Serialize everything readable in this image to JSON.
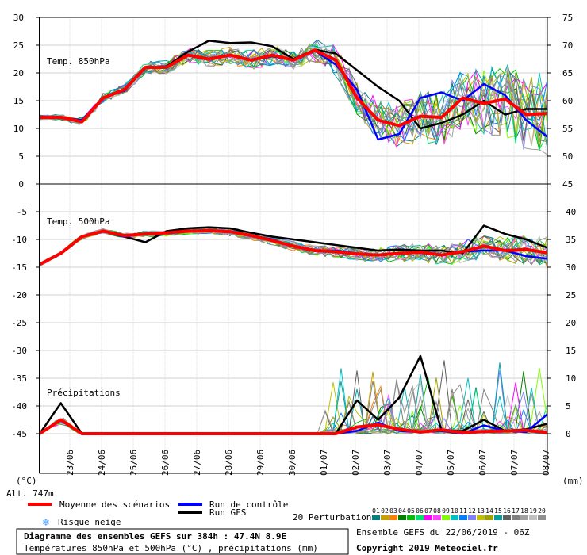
{
  "chart_data": {
    "type": "line",
    "title": "Diagramme des ensembles GEFS sur 384h : 47.4N 8.9E",
    "subtitle": "Températures 850hPa et 500hPa (°C) , précipitations (mm)",
    "run_info": "Ensemble GEFS du 22/06/2019 - 06Z",
    "copyright": "Copyright 2019 Meteociel.fr",
    "altitude": "Alt. 747m",
    "left_unit": "(°C)",
    "right_unit": "(mm)",
    "x_dates": [
      "23/06",
      "24/06",
      "25/06",
      "26/06",
      "27/06",
      "28/06",
      "29/06",
      "30/06",
      "01/07",
      "02/07",
      "03/07",
      "04/07",
      "05/07",
      "06/07",
      "07/07",
      "08/07"
    ],
    "xlim": [
      0,
      64
    ],
    "panel_labels": [
      "Temp. 850hPa",
      "Temp. 500hPa",
      "Précipitations"
    ],
    "left_axis_850": [
      "30",
      "25",
      "20",
      "15",
      "10",
      "5",
      "0"
    ],
    "left_axis_lower": [
      "-5",
      "-10",
      "-15",
      "-20",
      "-25",
      "-30",
      "-35",
      "-40",
      "-45"
    ],
    "right_axis_upper": [
      "75",
      "70",
      "65",
      "60",
      "55",
      "50",
      "45"
    ],
    "right_axis_lower": [
      "40",
      "35",
      "30",
      "25",
      "20",
      "15",
      "10",
      "5",
      "0"
    ],
    "legend": {
      "mean": "Moyenne des scénarios",
      "control": "Run de contrôle",
      "gfs": "Run GFS",
      "snow": "Risque neige",
      "perturbations": "20 Perturbations",
      "pert_numbers": [
        "01",
        "02",
        "03",
        "04",
        "05",
        "06",
        "07",
        "08",
        "09",
        "10",
        "11",
        "12",
        "13",
        "14",
        "15",
        "16",
        "17",
        "18",
        "19",
        "20"
      ]
    },
    "colors": {
      "mean": "#ff0000",
      "control": "#0000ff",
      "gfs": "#000000",
      "snow": "#3399ff",
      "perturbations": [
        "#008080",
        "#c8a000",
        "#ff8000",
        "#008000",
        "#00c000",
        "#00e070",
        "#ff00ff",
        "#ff40ff",
        "#80ff00",
        "#00c0c0",
        "#0080ff",
        "#8080ff",
        "#c0c000",
        "#a0a000",
        "#00a0a0",
        "#606060",
        "#808080",
        "#a0a0a0",
        "#c0c0c0",
        "#909090"
      ]
    },
    "series": [
      {
        "name": "Moyenne des scénarios",
        "t850": [
          12,
          12,
          11.2,
          15.5,
          17,
          21,
          21,
          23.2,
          22.5,
          23.2,
          22.3,
          23.2,
          22.3,
          24.1,
          22.3,
          15.5,
          11.5,
          10.5,
          12.2,
          12,
          15.5,
          14.5,
          15.3,
          12.5,
          12.7
        ],
        "t500": [
          -14.5,
          -12.5,
          -9.5,
          -8.5,
          -9.3,
          -9,
          -8.8,
          -8.5,
          -8.4,
          -8.6,
          -9.3,
          -10.2,
          -11.2,
          -12,
          -12.2,
          -12.6,
          -12.8,
          -12.5,
          -12.3,
          -12.8,
          -12.2,
          -11.2,
          -12,
          -11.8,
          -12.4
        ],
        "precip": [
          0,
          2.5,
          0,
          0,
          0,
          0,
          0,
          0,
          0,
          0,
          0,
          0,
          0,
          0,
          0,
          1.2,
          1.6,
          0.8,
          0.3,
          0.7,
          0.2,
          0.4,
          0.5,
          0.6,
          0.2
        ]
      },
      {
        "name": "Run de contrôle",
        "t850": [
          12,
          12,
          11.5,
          15.5,
          16.8,
          21,
          21,
          23.3,
          22.5,
          23.3,
          22.3,
          23,
          22.3,
          24,
          21.5,
          17,
          8,
          9,
          15.5,
          16.5,
          15,
          18,
          16,
          11.5,
          8.5
        ],
        "t500": [
          -14.5,
          -12.5,
          -9.5,
          -8.5,
          -9.5,
          -9,
          -8.8,
          -8.5,
          -8.4,
          -8.5,
          -9.3,
          -10,
          -11.3,
          -12,
          -12,
          -12.5,
          -12.8,
          -12.5,
          -12.3,
          -12.8,
          -12.2,
          -12,
          -12,
          -13,
          -13.5
        ],
        "precip": [
          0,
          2.5,
          0,
          0,
          0,
          0,
          0,
          0,
          0,
          0,
          0,
          0,
          0,
          0,
          0,
          0.5,
          2,
          0.5,
          0.3,
          0.5,
          0,
          1.5,
          0.5,
          0.3,
          3.5
        ]
      },
      {
        "name": "Run GFS",
        "t850": [
          12,
          12,
          11.3,
          15.5,
          17,
          21,
          21.2,
          23.8,
          25.8,
          25.4,
          25.5,
          24.8,
          22.5,
          24.2,
          23.5,
          20.5,
          17.5,
          15,
          10,
          11,
          12.5,
          15,
          12.5,
          13.5,
          13.5
        ],
        "t500": [
          -14.5,
          -12.5,
          -9.5,
          -8.5,
          -9.5,
          -10.5,
          -8.5,
          -8,
          -7.8,
          -8,
          -8.8,
          -9.5,
          -10,
          -10.5,
          -11,
          -11.5,
          -12,
          -11.8,
          -12,
          -12,
          -12.5,
          -7.5,
          -9,
          -10,
          -11.5
        ],
        "precip": [
          0,
          5.5,
          0,
          0,
          0,
          0,
          0,
          0,
          0,
          0,
          0,
          0,
          0,
          0,
          0,
          6,
          2.5,
          6.5,
          14,
          0.5,
          0.5,
          2.5,
          0.5,
          0.8,
          1.8
        ]
      }
    ]
  }
}
